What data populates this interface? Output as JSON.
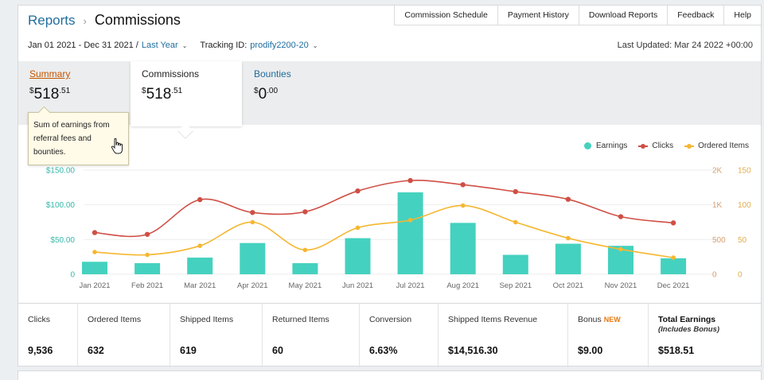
{
  "breadcrumb": {
    "root": "Reports",
    "separator": "›",
    "current": "Commissions"
  },
  "topnav": [
    "Commission Schedule",
    "Payment History",
    "Download Reports",
    "Feedback",
    "Help"
  ],
  "filters": {
    "date_range": "Jan 01 2021 - Dec 31 2021 /",
    "date_preset": "Last Year",
    "tracking_label": "Tracking ID:",
    "tracking_id": "prodify2200-20",
    "last_updated": "Last Updated: Mar 24 2022 +00:00"
  },
  "tabs": [
    {
      "label": "Summary",
      "dollar": "$",
      "whole": "518",
      "cents": ".51"
    },
    {
      "label": "Commissions",
      "dollar": "$",
      "whole": "518",
      "cents": ".51"
    },
    {
      "label": "Bounties",
      "dollar": "$",
      "whole": "0",
      "cents": ".00"
    }
  ],
  "tooltip": "Sum of earnings from referral fees and bounties.",
  "legend": [
    {
      "name": "Earnings",
      "color": "#45d1bf"
    },
    {
      "name": "Clicks",
      "color": "#cf4f45"
    },
    {
      "name": "Ordered Items",
      "color": "#f5b731"
    }
  ],
  "chart_data": {
    "type": "bar",
    "categories": [
      "Jan 2021",
      "Feb 2021",
      "Mar 2021",
      "Apr 2021",
      "May 2021",
      "Jun 2021",
      "Jul 2021",
      "Aug 2021",
      "Sep 2021",
      "Oct 2021",
      "Nov 2021",
      "Dec 2021"
    ],
    "series": [
      {
        "name": "Earnings",
        "type": "bar",
        "axis": "left",
        "color": "#45d1bf",
        "values": [
          18,
          16,
          24,
          45,
          16,
          52,
          118,
          74,
          28,
          44,
          41,
          23
        ]
      },
      {
        "name": "Clicks",
        "type": "line",
        "axis": "right1",
        "color": "#cf4f45",
        "values": [
          600,
          575,
          1150,
          890,
          900,
          1400,
          1700,
          1580,
          1380,
          1160,
          830,
          740
        ]
      },
      {
        "name": "Ordered Items",
        "type": "line",
        "axis": "right2",
        "color": "#f5b731",
        "values": [
          32,
          28,
          41,
          75,
          35,
          67,
          78,
          99,
          75,
          52,
          36,
          24
        ]
      }
    ],
    "axes": {
      "left": {
        "range": [
          0,
          150
        ],
        "ticks": [
          "0",
          "$50.00",
          "$100.00",
          "$150.00"
        ]
      },
      "right1": {
        "range": [
          0,
          2000
        ],
        "ticks": [
          "0",
          "500",
          "1K",
          "2K"
        ]
      },
      "right2": {
        "range": [
          0,
          150
        ],
        "ticks": [
          "0",
          "50",
          "100",
          "150"
        ]
      }
    },
    "legend_position": "top-right",
    "grid": true
  },
  "stats": [
    {
      "label": "Clicks",
      "value": "9,536"
    },
    {
      "label": "Ordered Items",
      "value": "632"
    },
    {
      "label": "Shipped Items",
      "value": "619"
    },
    {
      "label": "Returned Items",
      "value": "60"
    },
    {
      "label": "Conversion",
      "value": "6.63%"
    },
    {
      "label": "Shipped Items Revenue",
      "value": "$14,516.30"
    },
    {
      "label": "Bonus",
      "badge": "NEW",
      "value": "$9.00"
    },
    {
      "label": "Total Earnings",
      "sub": "(Includes Bonus)",
      "value": "$518.51"
    }
  ]
}
